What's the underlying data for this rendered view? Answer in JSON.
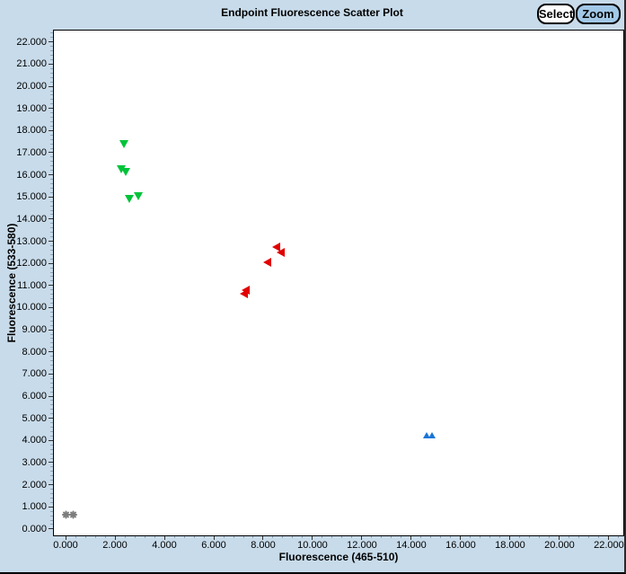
{
  "header": {
    "title": "Endpoint Fluorescence Scatter Plot",
    "buttons": [
      {
        "label": "Select"
      },
      {
        "label": "Zoom"
      }
    ]
  },
  "colors": {
    "window_bg": "#c8dbea",
    "plot_bg": "#ffffff",
    "plot_border": "#000000",
    "select_button_bg": "#ffffff",
    "zoom_button_bg": "#a2c8e8",
    "series_green": "#00c33a",
    "series_red": "#e00000",
    "series_blue": "#1b75d8",
    "series_gray": "#7d7d7d"
  },
  "chart_data": {
    "type": "scatter",
    "title": "Endpoint Fluorescence Scatter Plot",
    "xlabel": "Fluorescence (465-510)",
    "ylabel": "Fluorescence (533-580)",
    "xlim": [
      -0.51,
      22.62
    ],
    "ylim": [
      -0.33,
      22.56
    ],
    "grid": false,
    "legend": "none",
    "x_ticks": {
      "values": [
        0,
        2,
        4,
        6,
        8,
        10,
        12,
        14,
        16,
        18,
        20,
        22
      ],
      "labels": [
        "0.000",
        "2.000",
        "4.000",
        "6.000",
        "8.000",
        "10.000",
        "12.000",
        "14.000",
        "16.000",
        "18.000",
        "20.000",
        "22.000"
      ]
    },
    "y_ticks": {
      "values": [
        0,
        1,
        2,
        3,
        4,
        5,
        6,
        7,
        8,
        9,
        10,
        11,
        12,
        13,
        14,
        15,
        16,
        17,
        18,
        19,
        20,
        21,
        22
      ],
      "labels": [
        "0.000",
        "1.000",
        "2.000",
        "3.000",
        "4.000",
        "5.000",
        "6.000",
        "7.000",
        "8.000",
        "9.000",
        "10.000",
        "11.000",
        "12.000",
        "13.000",
        "14.000",
        "15.000",
        "16.000",
        "17.000",
        "18.000",
        "19.000",
        "20.000",
        "21.000",
        "22.000"
      ]
    },
    "minor_tick_step_x": 0.4,
    "minor_tick_step_y": 0.2,
    "series": [
      {
        "name": "green-group",
        "marker": "triangle-down",
        "color": "#00c33a",
        "points": [
          [
            2.38,
            17.4
          ],
          [
            2.26,
            16.26
          ],
          [
            2.44,
            16.13
          ],
          [
            2.59,
            14.92
          ],
          [
            2.95,
            15.03
          ]
        ]
      },
      {
        "name": "red-group",
        "marker": "triangle-left",
        "color": "#e00000",
        "points": [
          [
            8.51,
            12.72
          ],
          [
            8.7,
            12.49
          ],
          [
            8.15,
            12.05
          ],
          [
            7.3,
            10.8
          ],
          [
            7.21,
            10.62
          ]
        ]
      },
      {
        "name": "blue-group",
        "marker": "triangle-up",
        "color": "#1b75d8",
        "points": [
          [
            14.62,
            4.23
          ],
          [
            14.85,
            4.23
          ]
        ]
      },
      {
        "name": "gray-group",
        "marker": "star",
        "color": "#7d7d7d",
        "points": [
          [
            0.0,
            0.64
          ],
          [
            0.3,
            0.63
          ]
        ]
      }
    ]
  }
}
